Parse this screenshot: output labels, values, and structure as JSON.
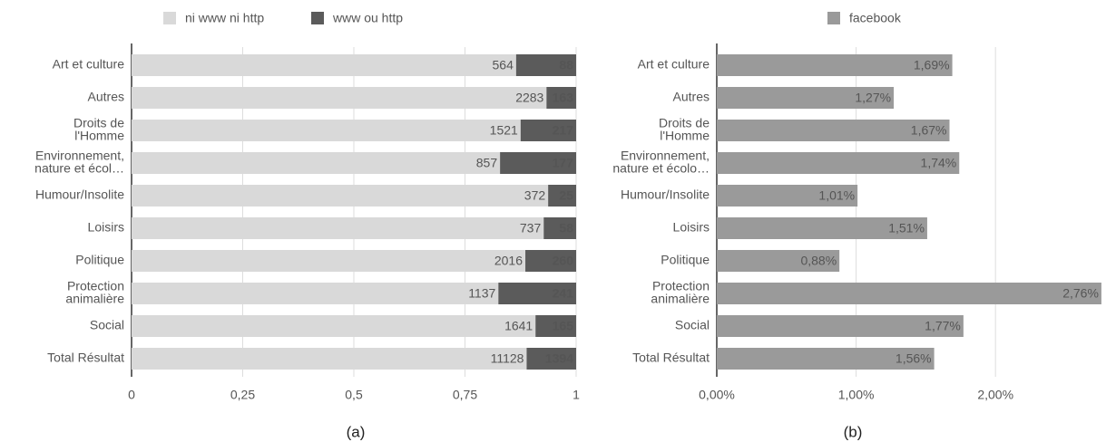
{
  "chart_data": [
    {
      "type": "bar",
      "orientation": "horizontal",
      "stack": "percent",
      "caption": "(a)",
      "categories": [
        "Art et culture",
        "Autres",
        [
          "Droits de",
          "l'Homme"
        ],
        [
          "Environnement,",
          "nature et écol…"
        ],
        "Humour/Insolite",
        "Loisirs",
        "Politique",
        [
          "Protection",
          "animalière"
        ],
        "Social",
        "Total Résultat"
      ],
      "series": [
        {
          "name": "ni www ni http",
          "color": "#d9d9d9",
          "label_color": "#333333",
          "values": [
            564,
            2283,
            1521,
            857,
            372,
            737,
            2016,
            1137,
            1641,
            11128
          ]
        },
        {
          "name": "www ou http",
          "color": "#5b5b5b",
          "label_color": "#ffffff",
          "values": [
            88,
            163,
            217,
            177,
            25,
            58,
            260,
            241,
            165,
            1394
          ]
        }
      ],
      "xlim": [
        0,
        1
      ],
      "xticks": [
        0,
        {
          "value": 0.25,
          "label": "0,25"
        },
        {
          "value": 0.5,
          "label": "0,5"
        },
        {
          "value": 0.75,
          "label": "0,75"
        },
        1
      ],
      "grid": true
    },
    {
      "type": "bar",
      "orientation": "horizontal",
      "caption": "(b)",
      "categories": [
        "Art et culture",
        "Autres",
        [
          "Droits de",
          "l'Homme"
        ],
        [
          "Environnement,",
          "nature et écolo…"
        ],
        "Humour/Insolite",
        "Loisirs",
        "Politique",
        [
          "Protection",
          "animalière"
        ],
        "Social",
        "Total Résultat"
      ],
      "series": [
        {
          "name": "facebook",
          "color": "#9a9a9a",
          "label_color": "#333333",
          "values": [
            1.69,
            1.27,
            1.67,
            1.74,
            1.01,
            1.51,
            0.88,
            2.76,
            1.77,
            1.56
          ],
          "value_labels": [
            "1,69%",
            "1,27%",
            "1,67%",
            "1,74%",
            "1,01%",
            "1,51%",
            "0,88%",
            "2,76%",
            "1,77%",
            "1,56%"
          ]
        }
      ],
      "xlim": [
        0,
        2.78
      ],
      "xticks": [
        {
          "value": 0,
          "label": "0,00%"
        },
        {
          "value": 1,
          "label": "1,00%"
        },
        {
          "value": 2,
          "label": "2,00%"
        }
      ],
      "grid": true
    }
  ]
}
